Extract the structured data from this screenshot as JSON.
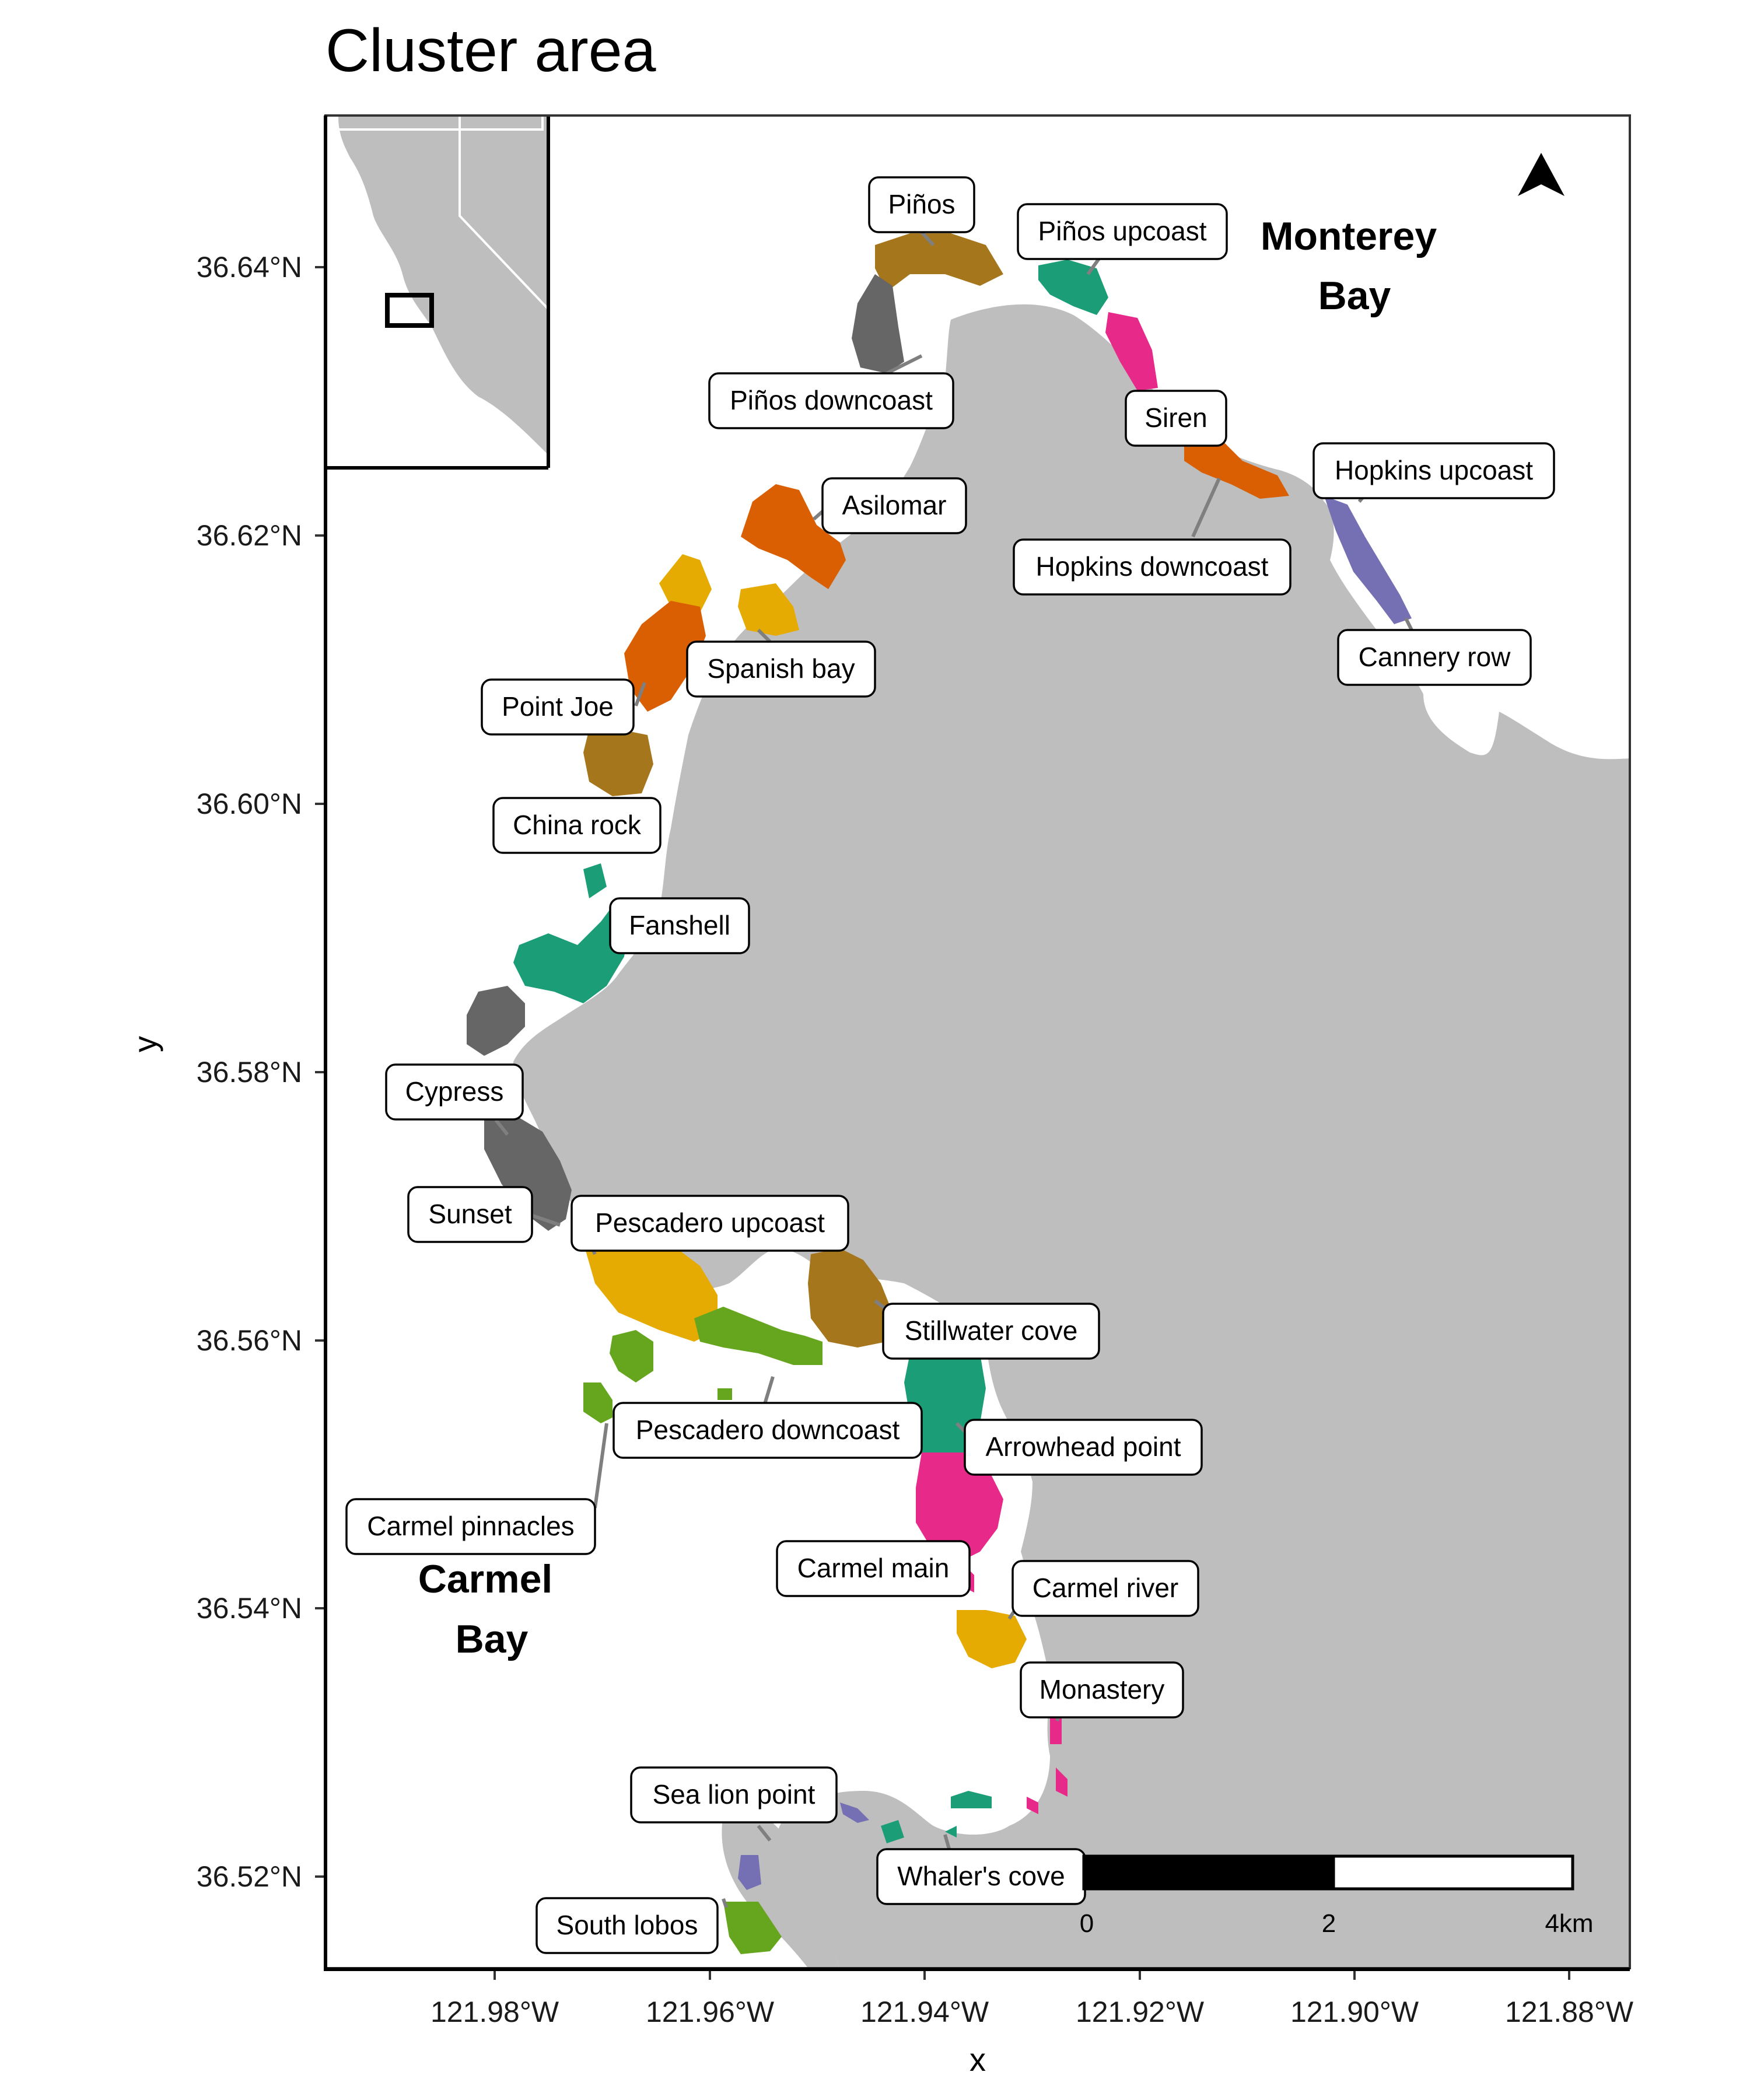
{
  "title": "Cluster area",
  "axes": {
    "x_title": "x",
    "y_title": "y",
    "x_ticks": [
      "121.98°W",
      "121.96°W",
      "121.94°W",
      "121.92°W",
      "121.90°W",
      "121.88°W"
    ],
    "y_ticks": [
      "36.64°N",
      "36.62°N",
      "36.60°N",
      "36.58°N",
      "36.56°N",
      "36.54°N",
      "36.52°N"
    ]
  },
  "bays": {
    "monterey": [
      "Monterey",
      "Bay"
    ],
    "carmel": [
      "Carmel",
      "Bay"
    ]
  },
  "scale_bar": {
    "labels": [
      "0",
      "2",
      "4km"
    ]
  },
  "north_arrow": {
    "icon": "north-arrow-icon"
  },
  "inset": {
    "region": "California",
    "box_icon": "study-area-box"
  },
  "colors": {
    "land": "#bebebe",
    "sea": "#ffffff",
    "teal": "#1b9e77",
    "orange": "#d95f02",
    "purple": "#7570b3",
    "pink": "#e7298a",
    "green": "#66a61e",
    "yellow": "#e6ab02",
    "brown": "#a6761d",
    "gray": "#666666"
  },
  "chart_data": {
    "type": "map",
    "title": "Cluster area",
    "xlabel": "x",
    "ylabel": "y",
    "xlim": [
      -121.995,
      -121.874
    ],
    "ylim": [
      36.5133,
      36.6513
    ],
    "sites": [
      {
        "name": "Piños",
        "lon": -121.9362,
        "lat": 36.6418,
        "color": "brown"
      },
      {
        "name": "Piños upcoast",
        "lon": -121.9275,
        "lat": 36.6385,
        "color": "teal"
      },
      {
        "name": "Piños downcoast",
        "lon": -121.9405,
        "lat": 36.6355,
        "color": "gray"
      },
      {
        "name": "Siren",
        "lon": -121.9213,
        "lat": 36.635,
        "color": "pink"
      },
      {
        "name": "Hopkins downcoast",
        "lon": -121.913,
        "lat": 36.6255,
        "color": "orange"
      },
      {
        "name": "Hopkins upcoast",
        "lon": -121.9004,
        "lat": 36.623,
        "color": "purple"
      },
      {
        "name": "Cannery row",
        "lon": -121.8988,
        "lat": 36.618,
        "color": "purple"
      },
      {
        "name": "Asilomar",
        "lon": -121.953,
        "lat": 36.6205,
        "color": "orange"
      },
      {
        "name": "Spanish bay",
        "lon": -121.9527,
        "lat": 36.6145,
        "color": "yellow"
      },
      {
        "name": "Point Joe",
        "lon": -121.9624,
        "lat": 36.611,
        "color": "orange"
      },
      {
        "name": "China rock",
        "lon": -121.9667,
        "lat": 36.603,
        "color": "brown"
      },
      {
        "name": "Fanshell",
        "lon": -121.969,
        "lat": 36.589,
        "color": "teal"
      },
      {
        "name": "Cypress",
        "lon": -121.9755,
        "lat": 36.583,
        "color": "gray"
      },
      {
        "name": "Sunset",
        "lon": -121.977,
        "lat": 36.574,
        "color": "gray"
      },
      {
        "name": "Pescadero upcoast",
        "lon": -121.963,
        "lat": 36.564,
        "color": "yellow"
      },
      {
        "name": "Stillwater cove",
        "lon": -121.947,
        "lat": 36.563,
        "color": "brown"
      },
      {
        "name": "Pescadero downcoast",
        "lon": -121.9565,
        "lat": 36.56,
        "color": "green"
      },
      {
        "name": "Arrowhead point",
        "lon": -121.941,
        "lat": 36.556,
        "color": "teal"
      },
      {
        "name": "Carmel pinnacles",
        "lon": -121.9707,
        "lat": 36.556,
        "color": "green"
      },
      {
        "name": "Carmel main",
        "lon": -121.9378,
        "lat": 36.548,
        "color": "pink"
      },
      {
        "name": "Carmel river",
        "lon": -121.934,
        "lat": 36.5375,
        "color": "yellow"
      },
      {
        "name": "Monastery",
        "lon": -121.9275,
        "lat": 36.528,
        "color": "pink"
      },
      {
        "name": "Sea lion point",
        "lon": -121.9465,
        "lat": 36.525,
        "color": "purple"
      },
      {
        "name": "Whaler's cove",
        "lon": -121.939,
        "lat": 36.524,
        "color": "teal"
      },
      {
        "name": "South lobos",
        "lon": -121.955,
        "lat": 36.5165,
        "color": "green"
      }
    ]
  }
}
